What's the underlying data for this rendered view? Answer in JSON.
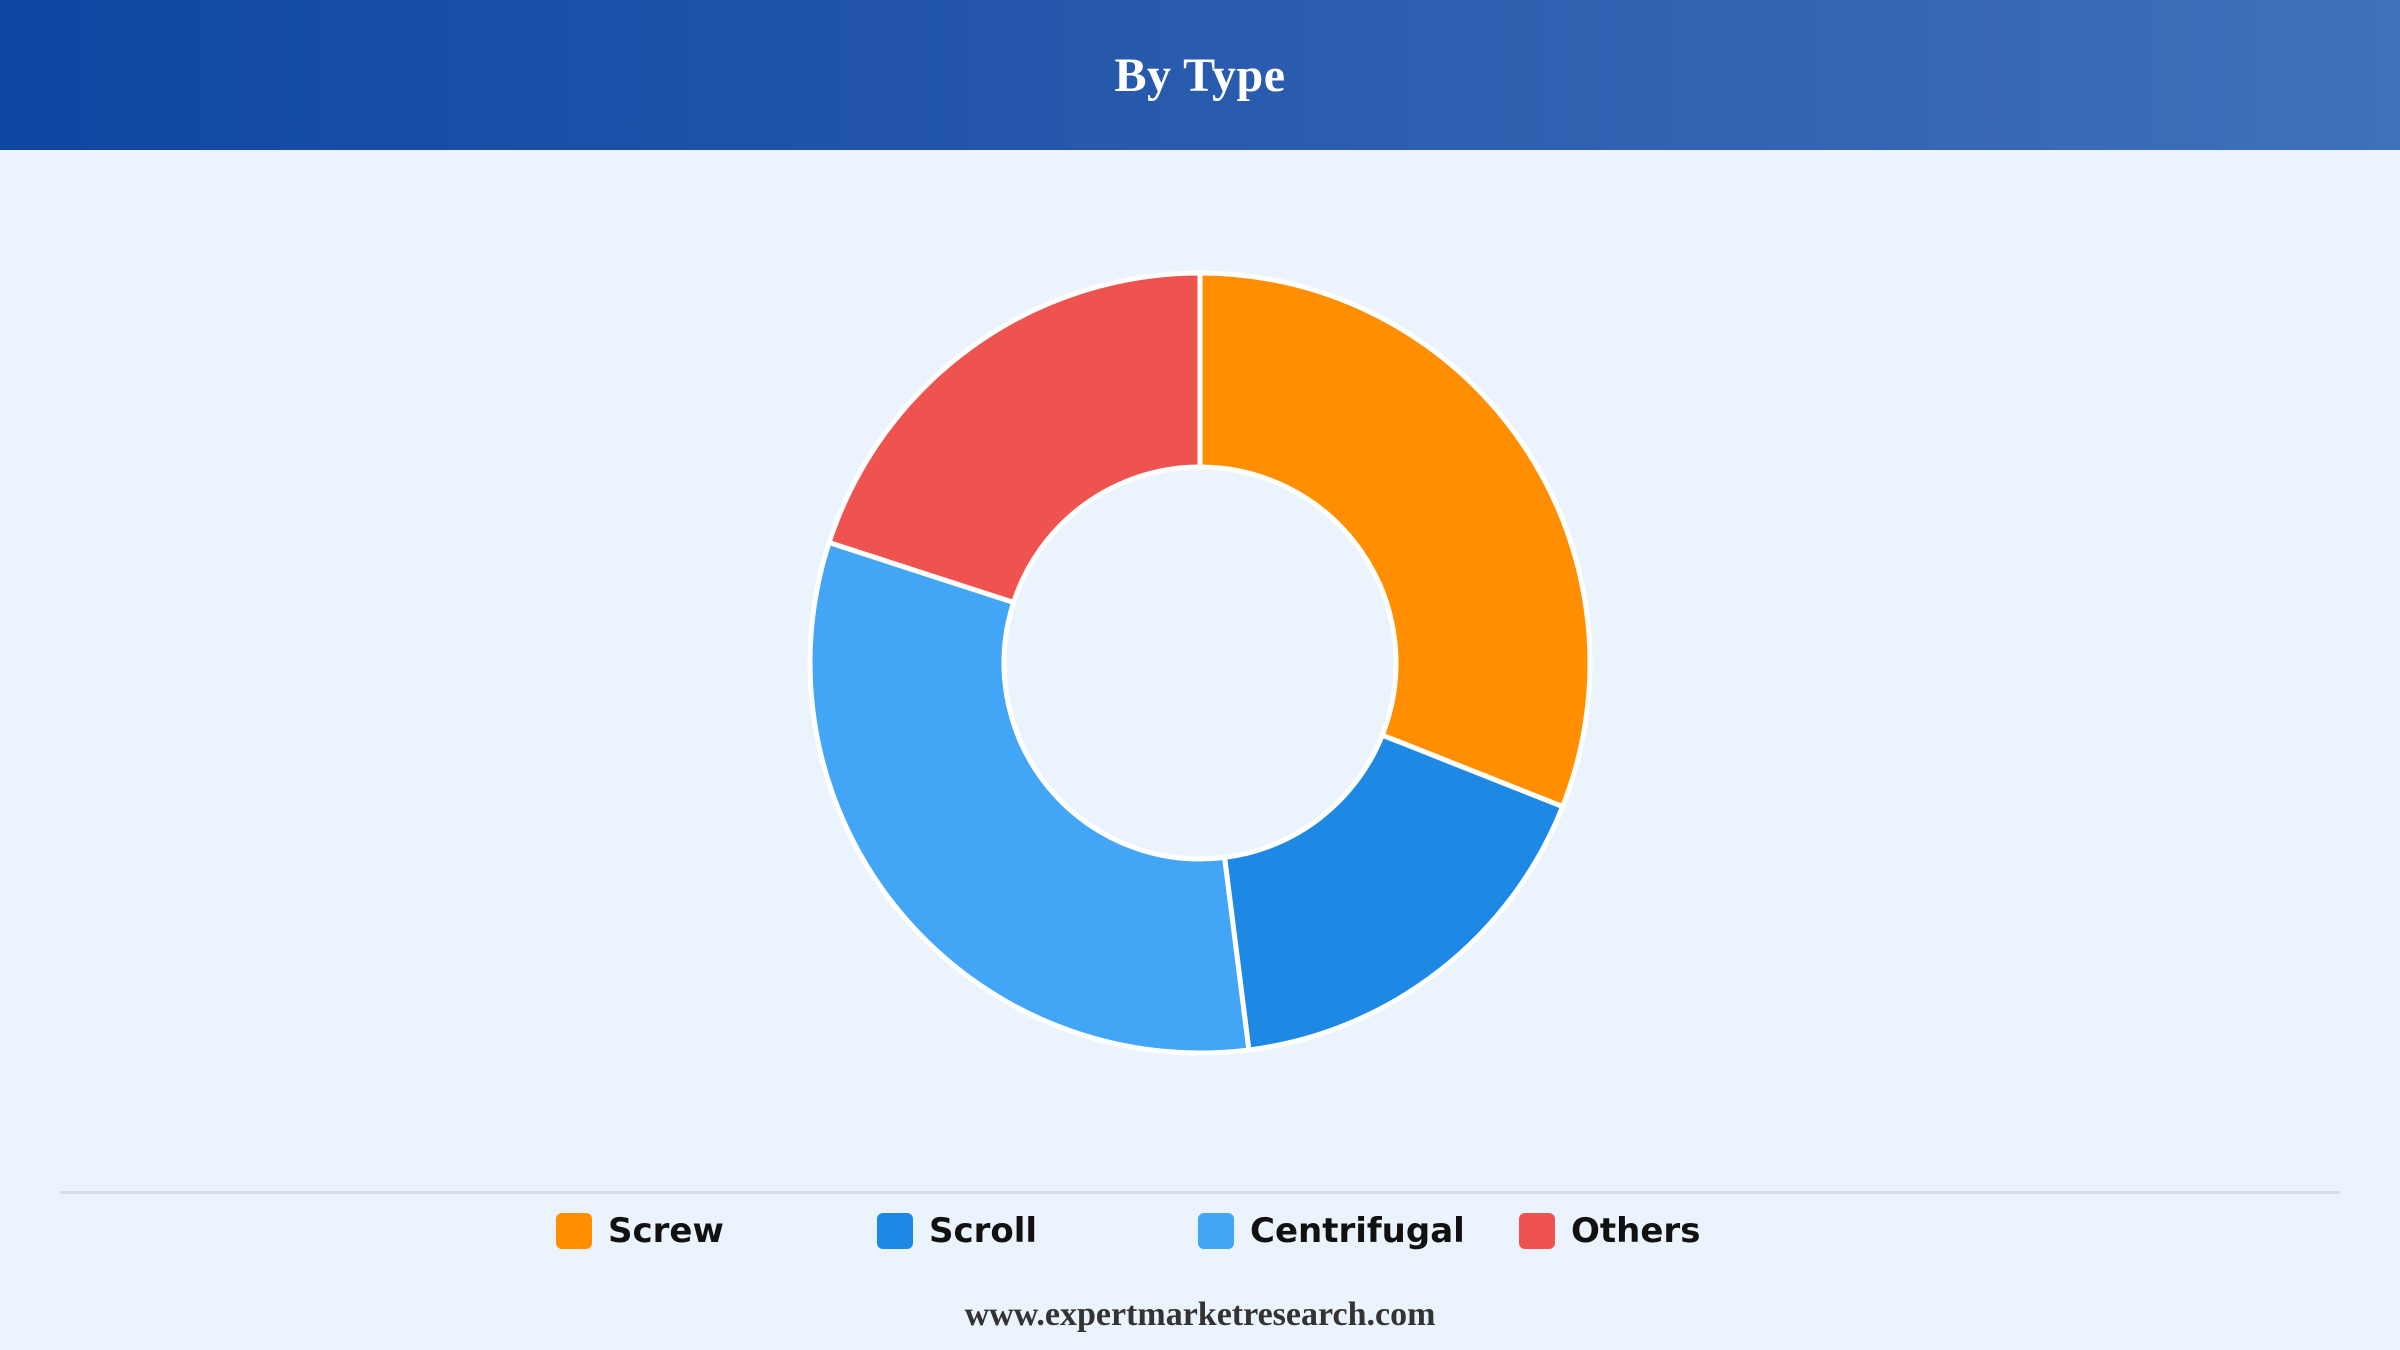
{
  "header": {
    "title": "By Type"
  },
  "chart_data": {
    "type": "pie",
    "title": "By Type",
    "donut": true,
    "categories": [
      "Screw",
      "Scroll",
      "Centrifugal",
      "Others"
    ],
    "values": [
      31,
      17,
      32,
      20
    ],
    "colors": [
      "#ff8f00",
      "#1e88e5",
      "#42a5f5",
      "#ef5350"
    ],
    "start_angle_deg": 0,
    "direction": "clockwise",
    "legend_position": "bottom"
  },
  "legend": {
    "items": [
      {
        "label": "Screw",
        "color": "#ff8f00"
      },
      {
        "label": "Scroll",
        "color": "#1e88e5"
      },
      {
        "label": "Centrifugal",
        "color": "#42a5f5"
      },
      {
        "label": "Others",
        "color": "#ef5350"
      }
    ]
  },
  "footer": {
    "source": "www.expertmarketresearch.com"
  }
}
